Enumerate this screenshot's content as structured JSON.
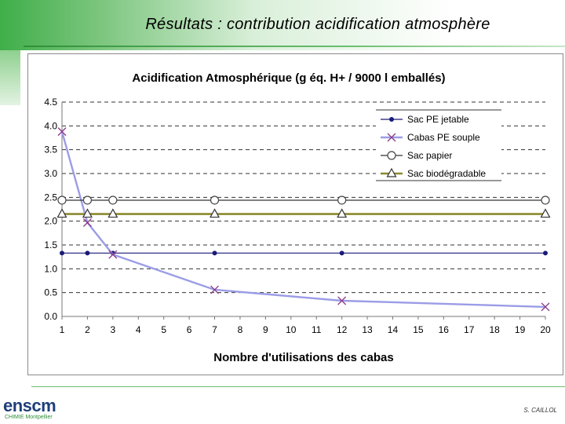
{
  "slide": {
    "title": "Résultats : contribution acidification atmosphère",
    "author": "S. CAILLOL",
    "logo_text": "enscm",
    "logo_subtext": "CHIMIE Montpellier"
  },
  "colors": {
    "sac_pe_jetable": "#1a1a7a",
    "cabas_pe_souple": "#9b9ce6",
    "cabas_marker": "#8a3a8a",
    "sac_papier": "#444444",
    "sac_biodegradable": "#8b8a2e"
  },
  "chart_data": {
    "type": "line",
    "title": "Acidification Atmosphérique (g éq. H+ / 9000 l emballés)",
    "xlabel": "Nombre d'utilisations des cabas",
    "ylabel": "",
    "x_ticks": [
      1,
      2,
      3,
      4,
      5,
      6,
      7,
      8,
      9,
      10,
      11,
      12,
      13,
      14,
      15,
      16,
      17,
      18,
      19,
      20
    ],
    "xlim": [
      1,
      20
    ],
    "y_ticks": [
      "0.0",
      "0.5",
      "1.0",
      "1.5",
      "2.0",
      "2.5",
      "3.0",
      "3.5",
      "4.0",
      "4.5"
    ],
    "ylim": [
      0,
      4.5
    ],
    "grid": "horizontal-dashed",
    "legend_position": "top-right",
    "series": [
      {
        "name": "Sac PE jetable",
        "marker": "dot",
        "x": [
          1,
          2,
          3,
          7,
          12,
          20
        ],
        "y": [
          1.33,
          1.33,
          1.33,
          1.33,
          1.33,
          1.33
        ]
      },
      {
        "name": "Cabas PE souple",
        "marker": "x",
        "x": [
          1,
          2,
          3,
          7,
          12,
          20
        ],
        "y": [
          3.88,
          1.97,
          1.3,
          0.56,
          0.33,
          0.2
        ]
      },
      {
        "name": "Sac papier",
        "marker": "circle",
        "x": [
          1,
          2,
          3,
          7,
          12,
          20
        ],
        "y": [
          2.44,
          2.44,
          2.44,
          2.44,
          2.44,
          2.44
        ]
      },
      {
        "name": "Sac biodégradable",
        "marker": "triangle",
        "x": [
          1,
          2,
          3,
          7,
          12,
          20
        ],
        "y": [
          2.15,
          2.15,
          2.15,
          2.15,
          2.15,
          2.15
        ]
      }
    ]
  }
}
